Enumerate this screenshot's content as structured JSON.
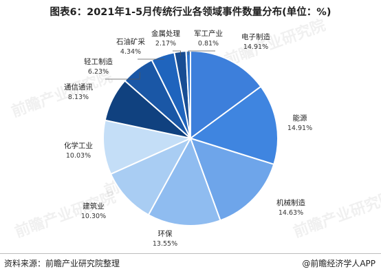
{
  "title": "图表6：2021年1-5月传统行业各领域事件数量分布(单位：%)",
  "source": "资料来源：前瞻产业研究院整理",
  "brand": "@前瞻经济学人APP",
  "watermark": "前瞻产业研究院",
  "chart_data": {
    "type": "pie",
    "unit": "%",
    "slices": [
      {
        "label": "电子制造",
        "value": 14.91,
        "color": "#3d7fdb"
      },
      {
        "label": "能源",
        "value": 14.91,
        "color": "#3f85e0"
      },
      {
        "label": "机械制造",
        "value": 14.63,
        "color": "#6ea5ea"
      },
      {
        "label": "环保",
        "value": 13.55,
        "color": "#8fbcf0"
      },
      {
        "label": "建筑业",
        "value": 10.3,
        "color": "#a9cdf3"
      },
      {
        "label": "化学工业",
        "value": 10.03,
        "color": "#c4def7"
      },
      {
        "label": "通信通讯",
        "value": 8.13,
        "color": "#10417f"
      },
      {
        "label": "轻工制造",
        "value": 6.23,
        "color": "#1a57a6"
      },
      {
        "label": "石油矿采",
        "value": 4.34,
        "color": "#1f64bd"
      },
      {
        "label": "金属处理",
        "value": 2.17,
        "color": "#184d93"
      },
      {
        "label": "军工产业",
        "value": 0.81,
        "color": "#2f76cf"
      }
    ]
  }
}
